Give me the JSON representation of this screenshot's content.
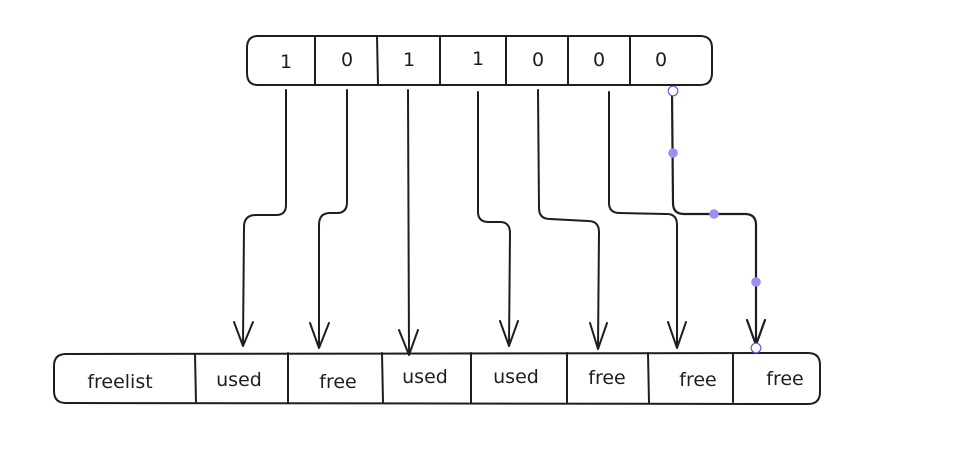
{
  "bitmap": {
    "bits": [
      "1",
      "0",
      "1",
      "1",
      "0",
      "0",
      "0"
    ]
  },
  "blocks": {
    "labels": [
      "freelist",
      "used",
      "free",
      "used",
      "used",
      "free",
      "free",
      "free"
    ]
  },
  "colors": {
    "stroke": "#1e1e1e",
    "selection_handle": "#a18cf0",
    "background": "#ffffff"
  }
}
